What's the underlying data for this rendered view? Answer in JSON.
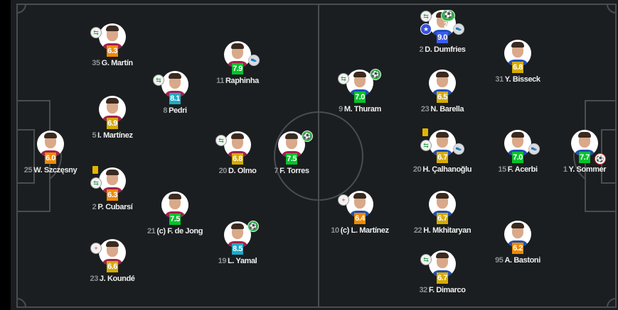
{
  "colors": {
    "pitch": "#1b1e20",
    "lines": "#4a4d50",
    "orange": "#ef8a00",
    "yellow": "#d6ab00",
    "green": "#05c22c",
    "blue": "#1eaac8",
    "darkblue": "#3b5cf0"
  },
  "home": {
    "players": [
      {
        "number": "25",
        "name": "W. Szczęsny",
        "rating": "6.0",
        "tier": "orange",
        "events": []
      },
      {
        "number": "35",
        "name": "G. Martín",
        "rating": "6.3",
        "tier": "orange",
        "events": [
          "sub"
        ]
      },
      {
        "number": "5",
        "name": "I. Martínez",
        "rating": "6.9",
        "tier": "yellow",
        "events": []
      },
      {
        "number": "2",
        "name": "P. Cubarsí",
        "rating": "6.3",
        "tier": "orange",
        "events": [
          "yellow-card",
          "sub"
        ]
      },
      {
        "number": "23",
        "name": "J. Koundé",
        "rating": "6.6",
        "tier": "yellow",
        "events": [
          "sub-in"
        ]
      },
      {
        "number": "8",
        "name": "Pedri",
        "rating": "8.1",
        "tier": "blue",
        "events": [
          "sub"
        ]
      },
      {
        "number": "21",
        "name": "(c) F. de Jong",
        "rating": "7.5",
        "tier": "green",
        "events": []
      },
      {
        "number": "11",
        "name": "Raphinha",
        "rating": "7.9",
        "tier": "green",
        "events": [
          "assist"
        ]
      },
      {
        "number": "20",
        "name": "D. Olmo",
        "rating": "6.8",
        "tier": "yellow",
        "events": [
          "sub"
        ]
      },
      {
        "number": "19",
        "name": "L. Yamal",
        "rating": "8.5",
        "tier": "blue",
        "events": [
          "goal"
        ]
      },
      {
        "number": "7",
        "name": "F. Torres",
        "rating": "7.5",
        "tier": "green",
        "events": [
          "goal"
        ]
      }
    ]
  },
  "away": {
    "players": [
      {
        "number": "2",
        "name": "D. Dumfries",
        "rating": "9.0",
        "tier": "darkblue",
        "events": [
          "sub",
          "star",
          "goal",
          "assist"
        ],
        "goal_count": "2"
      },
      {
        "number": "31",
        "name": "Y. Bisseck",
        "rating": "6.8",
        "tier": "yellow",
        "events": []
      },
      {
        "number": "9",
        "name": "M. Thuram",
        "rating": "7.0",
        "tier": "green",
        "events": [
          "sub",
          "goal"
        ]
      },
      {
        "number": "23",
        "name": "N. Barella",
        "rating": "6.5",
        "tier": "yellow",
        "events": []
      },
      {
        "number": "20",
        "name": "H. Çalhanoğlu",
        "rating": "6.7",
        "tier": "yellow",
        "events": [
          "yellow-card",
          "sub",
          "assist"
        ]
      },
      {
        "number": "15",
        "name": "F. Acerbi",
        "rating": "7.0",
        "tier": "green",
        "events": [
          "assist"
        ]
      },
      {
        "number": "1",
        "name": "Y. Sommer",
        "rating": "7.7",
        "tier": "green",
        "events": [
          "own-goal"
        ]
      },
      {
        "number": "10",
        "name": "(c) L. Martínez",
        "rating": "6.4",
        "tier": "orange",
        "events": [
          "sub-in"
        ]
      },
      {
        "number": "22",
        "name": "H. Mkhitaryan",
        "rating": "6.7",
        "tier": "yellow",
        "events": []
      },
      {
        "number": "95",
        "name": "A. Bastoni",
        "rating": "6.2",
        "tier": "orange",
        "events": []
      },
      {
        "number": "32",
        "name": "F. Dimarco",
        "rating": "6.7",
        "tier": "yellow",
        "events": [
          "sub"
        ]
      }
    ]
  }
}
